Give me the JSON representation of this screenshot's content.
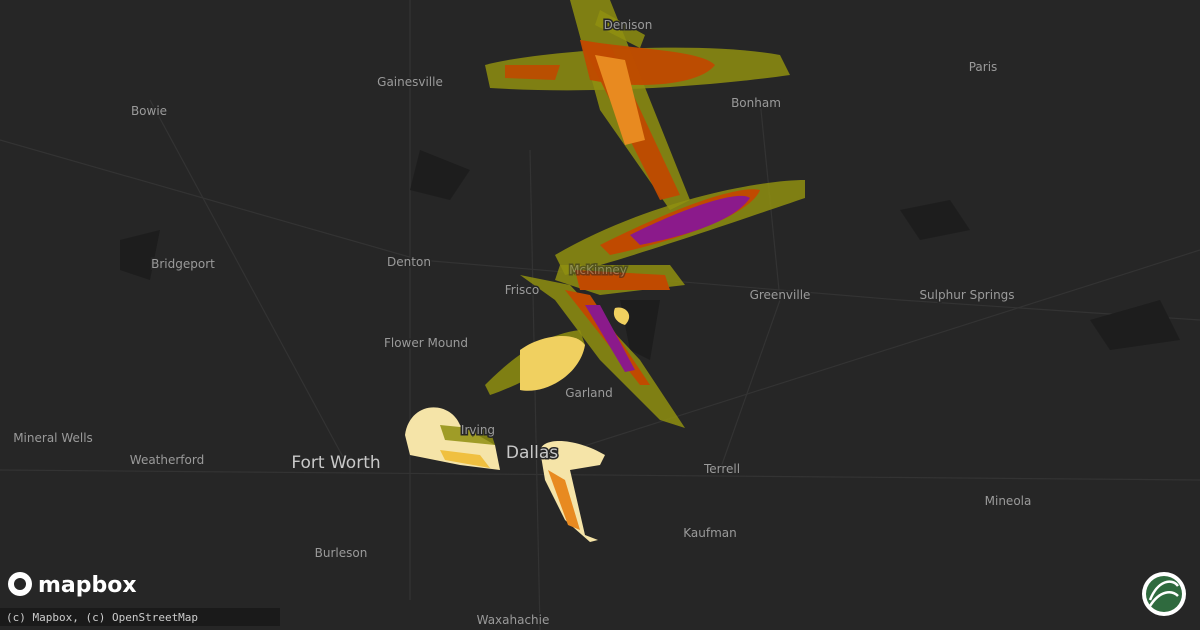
{
  "map": {
    "cities": [
      "Denison",
      "Gainesville",
      "Bonham",
      "Paris",
      "Bowie",
      "Denton",
      "Frisco",
      "McKinney",
      "Greenville",
      "Sulphur Springs",
      "Bridgeport",
      "Flower Mound",
      "Garland",
      "Irving",
      "Mineral Wells",
      "Weatherford",
      "Terrell",
      "Mineola",
      "Kaufman",
      "Burleson",
      "Waxahachie"
    ],
    "major_cities": [
      "Fort Worth",
      "Dallas"
    ],
    "logo": "mapbox",
    "attribution": "(c) Mapbox, (c) OpenStreetMap"
  }
}
